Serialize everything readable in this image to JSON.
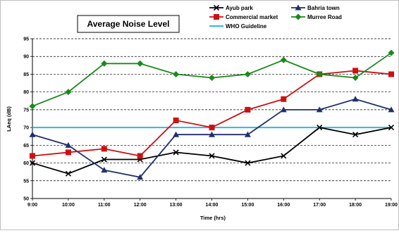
{
  "chart_data": {
    "type": "line",
    "title": "Average Noise Level",
    "xlabel": "Time (hrs)",
    "ylabel": "LAeq (dB)",
    "categories": [
      "9:00",
      "10:00",
      "11:00",
      "12:00",
      "13:00",
      "14:00",
      "15:00",
      "16:00",
      "17:00",
      "18:00",
      "19:00"
    ],
    "ylim": [
      50,
      95
    ],
    "yticks": [
      50,
      55,
      60,
      65,
      70,
      75,
      80,
      85,
      90,
      95
    ],
    "grid": "horizontal dashed",
    "legend_position": "top-right",
    "series": [
      {
        "name": "Ayub park",
        "color": "#000000",
        "marker": "x",
        "values": [
          60,
          57,
          61,
          61,
          63,
          62,
          60,
          62,
          70,
          68,
          70
        ]
      },
      {
        "name": "Bahria town",
        "color": "#1f2f6b",
        "marker": "triangle",
        "values": [
          68,
          65,
          58,
          56,
          68,
          68,
          68,
          75,
          75,
          78,
          75
        ]
      },
      {
        "name": "Commercial market",
        "color": "#cc1111",
        "marker": "square",
        "values": [
          62,
          63,
          64,
          62,
          72,
          70,
          75,
          78,
          85,
          86,
          85
        ]
      },
      {
        "name": "Murree Road",
        "color": "#1a8a1a",
        "marker": "diamond",
        "values": [
          76,
          80,
          88,
          88,
          85,
          84,
          85,
          89,
          85,
          84,
          91
        ]
      }
    ],
    "reference_line": {
      "name": "WHO Guideline",
      "value": 70,
      "color": "#33b5e5"
    }
  }
}
